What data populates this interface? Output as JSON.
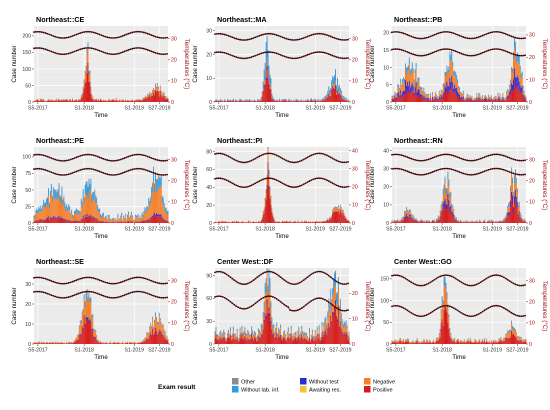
{
  "chart_data": {
    "type": "bar",
    "legend": {
      "title": "Exam result",
      "placement": "bottom",
      "entries": [
        {
          "label": "Other",
          "color": "#8c8c8c"
        },
        {
          "label": "Without lab. inf.",
          "color": "#2e9be8"
        },
        {
          "label": "Without test",
          "color": "#2b2bd6"
        },
        {
          "label": "Awaiting res.",
          "color": "#f2c230"
        },
        {
          "label": "Negative",
          "color": "#f57f2a"
        },
        {
          "label": "Positive",
          "color": "#d41c1c"
        }
      ]
    },
    "shared": {
      "xlabel": "Time",
      "ylabel": "Case number",
      "y2label": "Temperatures (°C)",
      "x_ticks": [
        "S5-2017",
        "S1-2018",
        "S1-2019",
        "S27-2019"
      ],
      "x_tick_weeks": [
        5,
        53,
        105,
        131
      ],
      "x_range_weeks": [
        1,
        140
      ],
      "grid": true,
      "background": "#ebebeb",
      "temperature_color": "#8b1a1a"
    },
    "panels": [
      {
        "title": "Northeast::CE",
        "ylim": [
          0,
          230
        ],
        "yticks": [
          0,
          50,
          100,
          150,
          200
        ],
        "y2lim": [
          0,
          36
        ],
        "y2ticks": [
          0,
          10,
          20,
          30
        ],
        "tmax": 32,
        "tmin": 24,
        "tvar": 1.5,
        "peaks": [
          {
            "w": 56,
            "h": 160,
            "s": 2.5
          },
          {
            "w": 128,
            "h": 45,
            "s": 6
          }
        ],
        "base": 8,
        "shares": {
          "pos": 0.6,
          "neg": 0.28,
          "wli": 0.08,
          "oth": 0.02,
          "wt": 0.02
        }
      },
      {
        "title": "Northeast::MA",
        "ylim": [
          0,
          32
        ],
        "yticks": [
          0,
          10,
          20,
          30
        ],
        "y2lim": [
          0,
          36
        ],
        "y2ticks": [
          0,
          10,
          20,
          30
        ],
        "tmax": 31,
        "tmin": 22,
        "tvar": 1.5,
        "peaks": [
          {
            "w": 55,
            "h": 26,
            "s": 2.5
          },
          {
            "w": 125,
            "h": 10,
            "s": 5
          }
        ],
        "base": 1.2,
        "shares": {
          "pos": 0.45,
          "neg": 0.15,
          "wli": 0.3,
          "oth": 0.05,
          "wt": 0.05
        }
      },
      {
        "title": "Northeast::PB",
        "ylim": [
          0,
          22
        ],
        "yticks": [
          0,
          5,
          10,
          15,
          20
        ],
        "y2lim": [
          0,
          34
        ],
        "y2ticks": [
          0,
          10,
          20,
          30
        ],
        "tmax": 30,
        "tmin": 22,
        "tvar": 1.5,
        "peaks": [
          {
            "w": 20,
            "h": 9,
            "s": 8
          },
          {
            "w": 62,
            "h": 13,
            "s": 5
          },
          {
            "w": 130,
            "h": 16,
            "s": 4
          }
        ],
        "base": 2,
        "shares": {
          "pos": 0.3,
          "neg": 0.35,
          "wli": 0.12,
          "oth": 0.03,
          "wt": 0.2
        }
      },
      {
        "title": "Northeast::PE",
        "ylim": [
          0,
          115
        ],
        "yticks": [
          0,
          25,
          50,
          75,
          100
        ],
        "y2lim": [
          0,
          36
        ],
        "y2ticks": [
          0,
          10,
          20,
          30
        ],
        "tmax": 31,
        "tmin": 24,
        "tvar": 1.5,
        "peaks": [
          {
            "w": 22,
            "h": 45,
            "s": 10
          },
          {
            "w": 58,
            "h": 55,
            "s": 6
          },
          {
            "w": 128,
            "h": 65,
            "s": 6
          }
        ],
        "base": 12,
        "shares": {
          "pos": 0.15,
          "neg": 0.55,
          "wli": 0.22,
          "oth": 0.04,
          "wt": 0.04
        }
      },
      {
        "title": "Northeast::PI",
        "ylim": [
          0,
          85
        ],
        "yticks": [
          0,
          20,
          40,
          60,
          80
        ],
        "y2lim": [
          0,
          42
        ],
        "y2ticks": [
          0,
          10,
          20,
          30,
          40
        ],
        "tmax": 36,
        "tmin": 22,
        "tvar": 2.5,
        "peaks": [
          {
            "w": 56,
            "h": 72,
            "s": 2.5
          },
          {
            "w": 128,
            "h": 22,
            "s": 5
          }
        ],
        "base": 2,
        "shares": {
          "pos": 0.7,
          "neg": 0.2,
          "wli": 0.05,
          "oth": 0.03,
          "wt": 0.02
        }
      },
      {
        "title": "Northeast::RN",
        "ylim": [
          0,
          42
        ],
        "yticks": [
          0,
          10,
          20,
          30,
          40
        ],
        "y2lim": [
          0,
          36
        ],
        "y2ticks": [
          0,
          10,
          20,
          30
        ],
        "tmax": 31,
        "tmin": 24,
        "tvar": 1.5,
        "peaks": [
          {
            "w": 18,
            "h": 7,
            "s": 4
          },
          {
            "w": 58,
            "h": 28,
            "s": 4
          },
          {
            "w": 127,
            "h": 26,
            "s": 4
          }
        ],
        "base": 1.5,
        "shares": {
          "pos": 0.4,
          "neg": 0.3,
          "wli": 0.1,
          "oth": 0.05,
          "wt": 0.15
        }
      },
      {
        "title": "Northeast::SE",
        "ylim": [
          0,
          38
        ],
        "yticks": [
          0,
          10,
          20,
          30
        ],
        "y2lim": [
          0,
          36
        ],
        "y2ticks": [
          0,
          10,
          20,
          30
        ],
        "tmax": 30,
        "tmin": 23,
        "tvar": 1.5,
        "peaks": [
          {
            "w": 56,
            "h": 28,
            "s": 5
          },
          {
            "w": 128,
            "h": 15,
            "s": 6
          }
        ],
        "base": 1,
        "shares": {
          "pos": 0.45,
          "neg": 0.4,
          "wli": 0.07,
          "oth": 0.03,
          "wt": 0.05
        }
      },
      {
        "title": "Center West::DF",
        "ylim": [
          0,
          100
        ],
        "yticks": [
          0,
          30,
          60,
          90
        ],
        "y2lim": [
          0,
          30
        ],
        "y2ticks": [
          0,
          10,
          20
        ],
        "tmax": 26,
        "tmin": 16,
        "tvar": 2.5,
        "peaks": [
          {
            "w": 56,
            "h": 90,
            "s": 3
          },
          {
            "w": 125,
            "h": 75,
            "s": 5
          }
        ],
        "base": 20,
        "shares": {
          "pos": 0.45,
          "neg": 0.3,
          "wli": 0.15,
          "oth": 0.05,
          "wt": 0.05
        }
      },
      {
        "title": "Center West::GO",
        "ylim": [
          0,
          175
        ],
        "yticks": [
          0,
          50,
          100,
          150
        ],
        "y2lim": [
          0,
          36
        ],
        "y2ticks": [
          0,
          10,
          20,
          30
        ],
        "tmax": 30,
        "tmin": 16,
        "tvar": 2.5,
        "peaks": [
          {
            "w": 56,
            "h": 150,
            "s": 3
          },
          {
            "w": 125,
            "h": 35,
            "s": 5
          }
        ],
        "base": 10,
        "shares": {
          "pos": 0.5,
          "neg": 0.35,
          "wli": 0.1,
          "oth": 0.03,
          "wt": 0.02
        }
      }
    ]
  }
}
